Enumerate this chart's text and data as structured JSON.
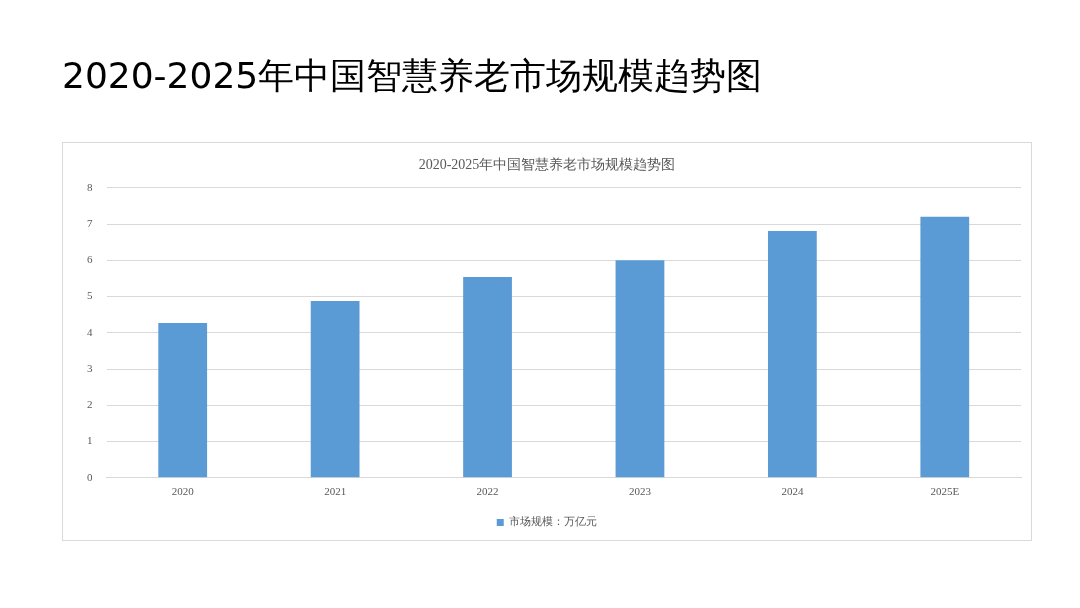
{
  "chart_data": {
    "type": "bar",
    "title": "2020-2025年中国智慧养老市场规模趋势图",
    "subtitle": "2020-2025年中国智慧养老市场规模趋势图",
    "categories": [
      "2020",
      "2021",
      "2022",
      "2023",
      "2024",
      "2025E"
    ],
    "series": [
      {
        "name": "市场规模：万亿元",
        "color": "#5b9bd5",
        "values": [
          4.27,
          4.88,
          5.54,
          6.0,
          6.81,
          7.2
        ]
      }
    ],
    "ylim": [
      0,
      8
    ],
    "yticks": [
      0,
      1,
      2,
      3,
      4,
      5,
      6,
      7,
      8
    ],
    "grid": "y",
    "legend": "bottom"
  }
}
